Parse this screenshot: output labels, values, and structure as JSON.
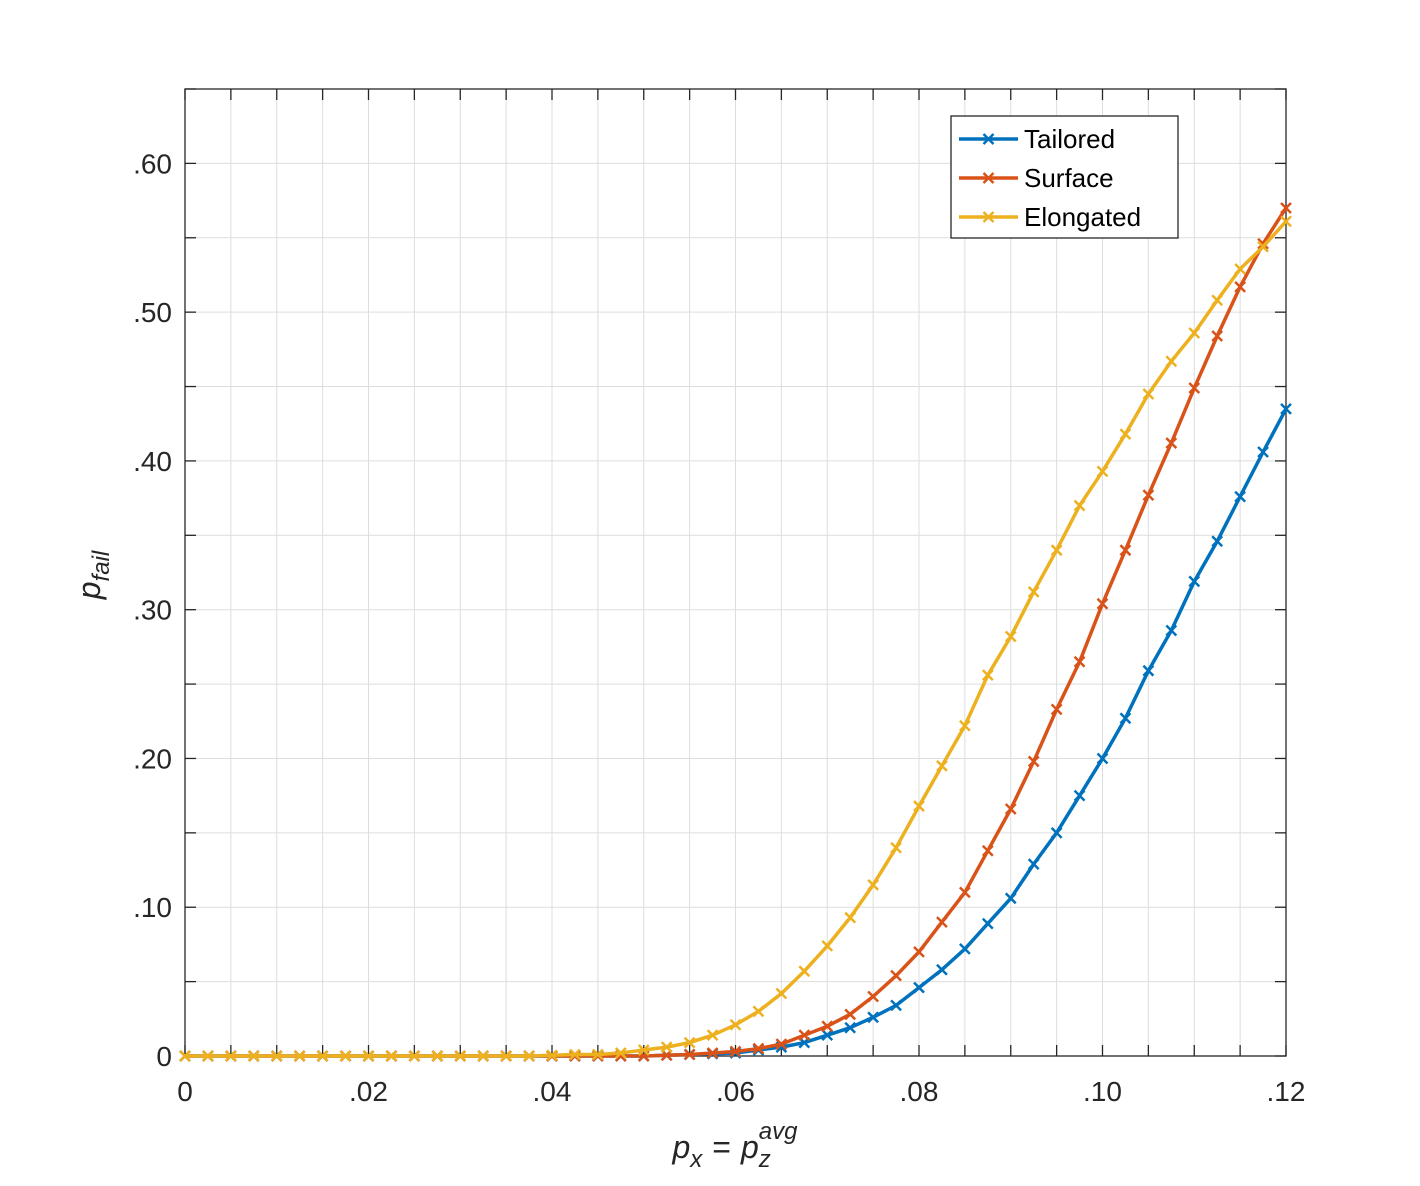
{
  "chart_data": {
    "type": "line",
    "xlabel": {
      "base": "p",
      "sub1": "x",
      "eq": "=",
      "base2": "p",
      "sub2": "z",
      "sup2": "avg"
    },
    "ylabel": {
      "base": "p",
      "sub": "fail"
    },
    "xlim": [
      0,
      0.12
    ],
    "ylim": [
      0,
      0.65
    ],
    "x_ticks": [
      0,
      0.02,
      0.04,
      0.06,
      0.08,
      0.1,
      0.12
    ],
    "x_tick_labels": [
      "0",
      ".02",
      ".04",
      ".06",
      ".08",
      ".10",
      ".12"
    ],
    "y_ticks": [
      0,
      0.1,
      0.2,
      0.3,
      0.4,
      0.5,
      0.6
    ],
    "y_tick_labels": [
      "0",
      ".10",
      ".20",
      ".30",
      ".40",
      ".50",
      ".60"
    ],
    "grid": true,
    "legend_position": "top-right",
    "marker": "x",
    "x": [
      0,
      0.0025,
      0.005,
      0.0075,
      0.01,
      0.0125,
      0.015,
      0.0175,
      0.02,
      0.0225,
      0.025,
      0.0275,
      0.03,
      0.0325,
      0.035,
      0.0375,
      0.04,
      0.0425,
      0.045,
      0.0475,
      0.05,
      0.0525,
      0.055,
      0.0575,
      0.06,
      0.0625,
      0.065,
      0.0675,
      0.07,
      0.0725,
      0.075,
      0.0775,
      0.08,
      0.0825,
      0.085,
      0.0875,
      0.09,
      0.0925,
      0.095,
      0.0975,
      0.1,
      0.1025,
      0.105,
      0.1075,
      0.11,
      0.1125,
      0.115,
      0.1175,
      0.12
    ],
    "series": [
      {
        "name": "Tailored",
        "color": "#0072BD",
        "values": [
          0,
          0,
          0,
          0,
          0,
          0,
          0,
          0,
          0,
          0,
          0,
          0,
          0,
          0,
          0,
          0,
          0,
          0,
          0,
          0,
          0,
          0.0005,
          0.001,
          0.0015,
          0.002,
          0.004,
          0.006,
          0.009,
          0.014,
          0.019,
          0.026,
          0.034,
          0.046,
          0.058,
          0.072,
          0.089,
          0.106,
          0.129,
          0.15,
          0.175,
          0.2,
          0.227,
          0.259,
          0.286,
          0.319,
          0.346,
          0.376,
          0.406,
          0.435
        ]
      },
      {
        "name": "Surface",
        "color": "#D95319",
        "values": [
          0,
          0,
          0,
          0,
          0,
          0,
          0,
          0,
          0,
          0,
          0,
          0,
          0,
          0,
          0,
          0,
          0,
          0,
          0,
          0,
          0,
          0.0005,
          0.001,
          0.002,
          0.003,
          0.005,
          0.008,
          0.014,
          0.02,
          0.028,
          0.04,
          0.054,
          0.07,
          0.09,
          0.11,
          0.138,
          0.166,
          0.198,
          0.233,
          0.265,
          0.304,
          0.34,
          0.377,
          0.412,
          0.449,
          0.484,
          0.517,
          0.546,
          0.57
        ]
      },
      {
        "name": "Elongated",
        "color": "#EDB120",
        "values": [
          0,
          0,
          0,
          0,
          0,
          0,
          0,
          0,
          0,
          0,
          0,
          0,
          0,
          0,
          0,
          0,
          0.0005,
          0.001,
          0.001,
          0.002,
          0.004,
          0.006,
          0.009,
          0.014,
          0.021,
          0.03,
          0.042,
          0.057,
          0.074,
          0.093,
          0.115,
          0.14,
          0.168,
          0.195,
          0.222,
          0.256,
          0.282,
          0.312,
          0.34,
          0.37,
          0.393,
          0.418,
          0.445,
          0.467,
          0.486,
          0.508,
          0.529,
          0.544,
          0.561
        ]
      }
    ]
  }
}
